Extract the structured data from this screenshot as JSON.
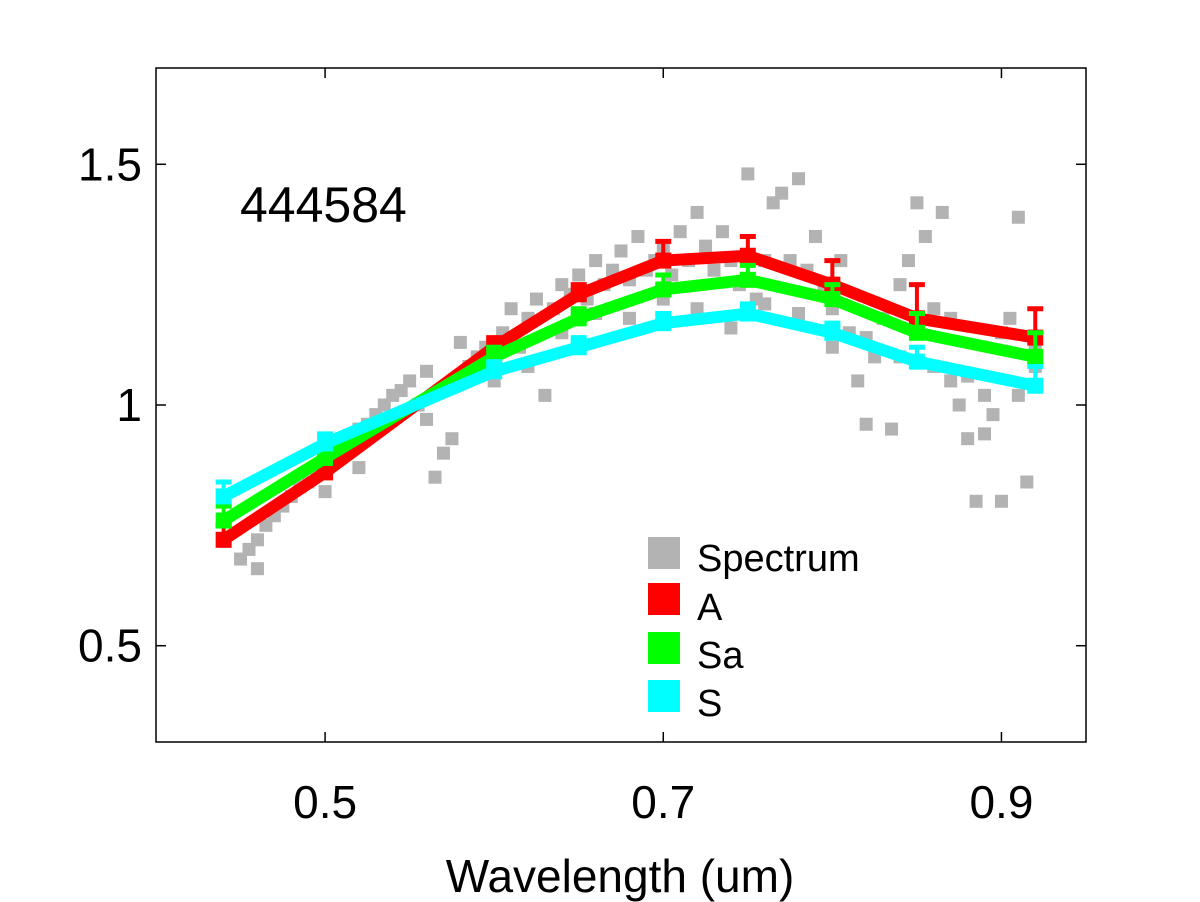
{
  "chart_data": {
    "type": "line",
    "annotation": "444584",
    "xlabel": "Wavelength (um)",
    "ylabel": "",
    "xlim": [
      0.4,
      0.95
    ],
    "ylim": [
      0.3,
      1.7
    ],
    "x_ticks": [
      0.5,
      0.7,
      0.9
    ],
    "x_tick_labels": [
      "0.5",
      "0.7",
      "0.9"
    ],
    "y_ticks": [
      0.5,
      1.0,
      1.5
    ],
    "y_tick_labels": [
      "0.5",
      "1",
      "1.5"
    ],
    "grid": false,
    "legend_position": "bottom-right",
    "legend": [
      "Spectrum",
      "A",
      "Sa",
      "S"
    ],
    "colors": {
      "Spectrum": "#b3b3b3",
      "A": "#ff0000",
      "Sa": "#00ff00",
      "S": "#00ffff"
    },
    "series": [
      {
        "name": "A",
        "x": [
          0.44,
          0.5,
          0.6,
          0.65,
          0.7,
          0.75,
          0.8,
          0.85,
          0.92
        ],
        "values": [
          0.72,
          0.86,
          1.12,
          1.23,
          1.3,
          1.31,
          1.25,
          1.18,
          1.14
        ],
        "err": [
          0.03,
          0.02,
          0.02,
          0.02,
          0.04,
          0.04,
          0.05,
          0.07,
          0.06
        ]
      },
      {
        "name": "Sa",
        "x": [
          0.44,
          0.5,
          0.6,
          0.65,
          0.7,
          0.75,
          0.8,
          0.85,
          0.92
        ],
        "values": [
          0.76,
          0.89,
          1.1,
          1.18,
          1.24,
          1.26,
          1.22,
          1.15,
          1.1
        ],
        "err": [
          0.03,
          0.02,
          0.02,
          0.02,
          0.03,
          0.03,
          0.03,
          0.04,
          0.05
        ]
      },
      {
        "name": "S",
        "x": [
          0.44,
          0.5,
          0.6,
          0.65,
          0.7,
          0.75,
          0.8,
          0.85,
          0.92
        ],
        "values": [
          0.81,
          0.92,
          1.07,
          1.12,
          1.17,
          1.19,
          1.15,
          1.09,
          1.04
        ],
        "err": [
          0.03,
          0.02,
          0.02,
          0.02,
          0.02,
          0.02,
          0.02,
          0.03,
          0.04
        ]
      }
    ],
    "spectrum_points": [
      [
        0.45,
        0.68
      ],
      [
        0.455,
        0.7
      ],
      [
        0.46,
        0.72
      ],
      [
        0.465,
        0.75
      ],
      [
        0.47,
        0.77
      ],
      [
        0.475,
        0.79
      ],
      [
        0.48,
        0.81
      ],
      [
        0.485,
        0.83
      ],
      [
        0.49,
        0.84
      ],
      [
        0.495,
        0.86
      ],
      [
        0.5,
        0.88
      ],
      [
        0.505,
        0.9
      ],
      [
        0.51,
        0.91
      ],
      [
        0.515,
        0.93
      ],
      [
        0.52,
        0.95
      ],
      [
        0.525,
        0.96
      ],
      [
        0.53,
        0.98
      ],
      [
        0.535,
        1.0
      ],
      [
        0.54,
        1.02
      ],
      [
        0.545,
        1.03
      ],
      [
        0.55,
        1.05
      ],
      [
        0.555,
        1.0
      ],
      [
        0.56,
        0.97
      ],
      [
        0.565,
        0.85
      ],
      [
        0.57,
        0.9
      ],
      [
        0.575,
        0.93
      ],
      [
        0.58,
        1.06
      ],
      [
        0.585,
        1.08
      ],
      [
        0.59,
        1.1
      ],
      [
        0.595,
        1.12
      ],
      [
        0.6,
        1.13
      ],
      [
        0.605,
        1.15
      ],
      [
        0.61,
        1.2
      ],
      [
        0.615,
        1.12
      ],
      [
        0.62,
        1.18
      ],
      [
        0.625,
        1.22
      ],
      [
        0.63,
        1.02
      ],
      [
        0.635,
        1.2
      ],
      [
        0.64,
        1.25
      ],
      [
        0.645,
        1.23
      ],
      [
        0.65,
        1.27
      ],
      [
        0.655,
        1.22
      ],
      [
        0.66,
        1.3
      ],
      [
        0.665,
        1.25
      ],
      [
        0.67,
        1.28
      ],
      [
        0.675,
        1.32
      ],
      [
        0.68,
        1.26
      ],
      [
        0.685,
        1.35
      ],
      [
        0.69,
        1.28
      ],
      [
        0.695,
        1.3
      ],
      [
        0.7,
        1.33
      ],
      [
        0.705,
        1.27
      ],
      [
        0.71,
        1.36
      ],
      [
        0.715,
        1.3
      ],
      [
        0.72,
        1.4
      ],
      [
        0.725,
        1.33
      ],
      [
        0.73,
        1.28
      ],
      [
        0.735,
        1.36
      ],
      [
        0.74,
        1.3
      ],
      [
        0.745,
        1.25
      ],
      [
        0.75,
        1.48
      ],
      [
        0.755,
        1.22
      ],
      [
        0.76,
        1.3
      ],
      [
        0.765,
        1.42
      ],
      [
        0.77,
        1.44
      ],
      [
        0.775,
        1.3
      ],
      [
        0.78,
        1.47
      ],
      [
        0.785,
        1.28
      ],
      [
        0.79,
        1.35
      ],
      [
        0.795,
        1.25
      ],
      [
        0.8,
        1.2
      ],
      [
        0.805,
        1.3
      ],
      [
        0.81,
        1.15
      ],
      [
        0.815,
        1.05
      ],
      [
        0.82,
        0.96
      ],
      [
        0.825,
        1.1
      ],
      [
        0.83,
        1.18
      ],
      [
        0.835,
        0.95
      ],
      [
        0.84,
        1.25
      ],
      [
        0.845,
        1.3
      ],
      [
        0.85,
        1.42
      ],
      [
        0.855,
        1.35
      ],
      [
        0.86,
        1.2
      ],
      [
        0.865,
        1.4
      ],
      [
        0.87,
        1.05
      ],
      [
        0.875,
        1.0
      ],
      [
        0.88,
        0.93
      ],
      [
        0.885,
        0.8
      ],
      [
        0.89,
        1.02
      ],
      [
        0.895,
        0.98
      ],
      [
        0.9,
        0.8
      ],
      [
        0.905,
        1.18
      ],
      [
        0.91,
        1.39
      ],
      [
        0.915,
        0.84
      ],
      [
        0.92,
        1.12
      ],
      [
        0.46,
        0.66
      ],
      [
        0.5,
        0.82
      ],
      [
        0.52,
        0.87
      ],
      [
        0.56,
        1.07
      ],
      [
        0.58,
        1.13
      ],
      [
        0.6,
        1.05
      ],
      [
        0.62,
        1.08
      ],
      [
        0.64,
        1.15
      ],
      [
        0.66,
        1.19
      ],
      [
        0.68,
        1.18
      ],
      [
        0.7,
        1.22
      ],
      [
        0.72,
        1.2
      ],
      [
        0.74,
        1.16
      ],
      [
        0.76,
        1.21
      ],
      [
        0.78,
        1.19
      ],
      [
        0.8,
        1.12
      ],
      [
        0.82,
        1.14
      ],
      [
        0.84,
        1.1
      ],
      [
        0.86,
        1.08
      ],
      [
        0.88,
        1.06
      ],
      [
        0.9,
        1.15
      ],
      [
        0.91,
        1.02
      ],
      [
        0.92,
        1.08
      ],
      [
        0.89,
        0.94
      ],
      [
        0.87,
        1.18
      ]
    ]
  }
}
